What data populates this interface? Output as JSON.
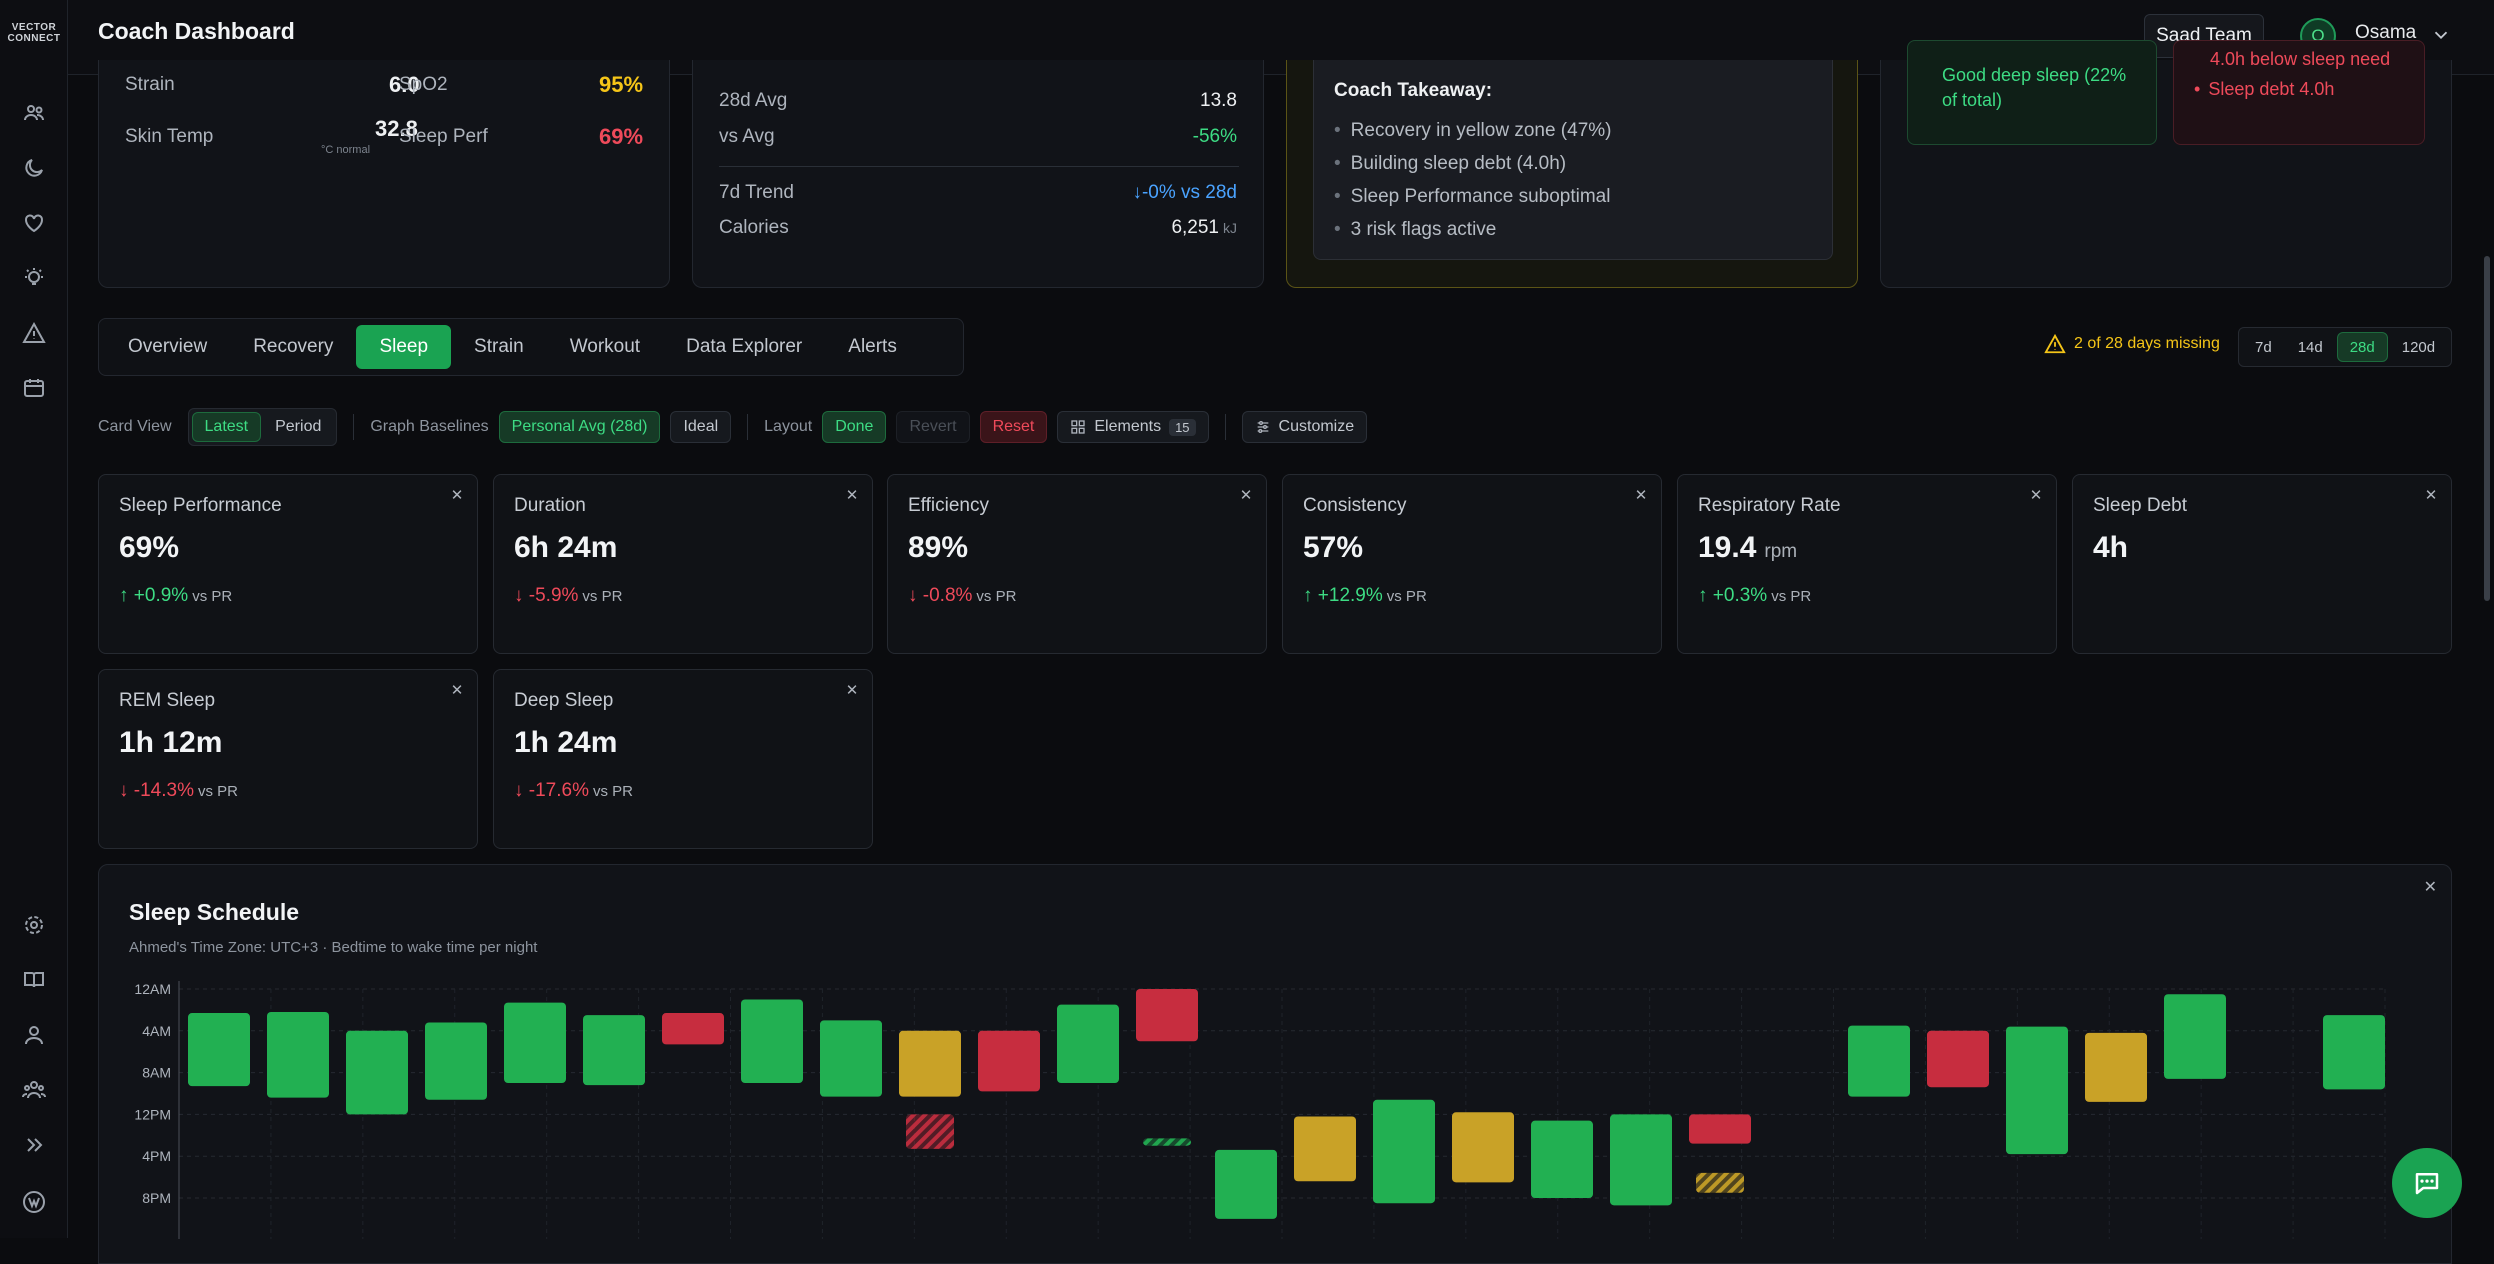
{
  "app": {
    "logo": "VECTOR CONNECT",
    "title": "Coach Dashboard",
    "team_button": "Saad Team",
    "user_initial": "O",
    "user_name": "Osama"
  },
  "sidebar": {
    "top_icons": [
      "team-icon",
      "moon-icon",
      "heart-icon",
      "lightbulb-icon",
      "alert-triangle-icon",
      "calendar-icon"
    ],
    "bottom_icons": [
      "gear-icon",
      "book-icon",
      "user-icon",
      "users-icon",
      "chevrons-right-icon",
      "brand-circle-icon"
    ]
  },
  "summary": {
    "left": {
      "rows": [
        {
          "label": "Strain",
          "value": "6.0",
          "label2": "SpO2",
          "value2": "95%"
        },
        {
          "label": "Skin Temp",
          "value": "32.8",
          "note": "°C normal",
          "label2": "Sleep Perf",
          "value2": "69%"
        }
      ]
    },
    "middle": {
      "avg_label": "28d Avg",
      "avg_value": "13.8",
      "vs_label": "vs Avg",
      "vs_value": "-56%",
      "trend_label": "7d Trend",
      "trend_value": "↓-0% vs 28d",
      "cal_label": "Calories",
      "cal_value": "6,251",
      "cal_unit": "kJ"
    },
    "takeaway": {
      "title": "Coach Takeaway:",
      "items": [
        "Recovery in yellow zone (47%)",
        "Building sleep debt (4.0h)",
        "Sleep Performance suboptimal",
        "3 risk flags active"
      ]
    },
    "flags": {
      "good_text": "Good deep sleep (22% of total)",
      "bad_top": "4.0h below sleep need",
      "bad_item": "Sleep debt 4.0h"
    }
  },
  "tabs": [
    {
      "label": "Overview",
      "active": false
    },
    {
      "label": "Recovery",
      "active": false
    },
    {
      "label": "Sleep",
      "active": true
    },
    {
      "label": "Strain",
      "active": false
    },
    {
      "label": "Workout",
      "active": false
    },
    {
      "label": "Data Explorer",
      "active": false
    },
    {
      "label": "Alerts",
      "active": false
    }
  ],
  "missing_text": "2 of 28 days missing",
  "ranges": [
    {
      "label": "7d"
    },
    {
      "label": "14d"
    },
    {
      "label": "28d",
      "active": true
    },
    {
      "label": "120d"
    }
  ],
  "toolbar": {
    "card_view_label": "Card View",
    "latest": "Latest",
    "period": "Period",
    "baselines_label": "Graph Baselines",
    "personal_avg": "Personal Avg (28d)",
    "ideal": "Ideal",
    "layout_label": "Layout",
    "done": "Done",
    "revert": "Revert",
    "reset": "Reset",
    "elements": "Elements",
    "elements_count": "15",
    "customize": "Customize"
  },
  "metrics": [
    {
      "title": "Sleep Performance",
      "value": "69%",
      "unit": "",
      "delta": "+0.9%",
      "dir": "up",
      "vs": "vs PR"
    },
    {
      "title": "Duration",
      "value": "6h 24m",
      "unit": "",
      "delta": "-5.9%",
      "dir": "down",
      "vs": "vs PR"
    },
    {
      "title": "Efficiency",
      "value": "89%",
      "unit": "",
      "delta": "-0.8%",
      "dir": "down",
      "vs": "vs PR"
    },
    {
      "title": "Consistency",
      "value": "57%",
      "unit": "",
      "delta": "+12.9%",
      "dir": "up",
      "vs": "vs PR"
    },
    {
      "title": "Respiratory Rate",
      "value": "19.4",
      "unit": "rpm",
      "delta": "+0.3%",
      "dir": "up",
      "vs": "vs PR"
    },
    {
      "title": "Sleep Debt",
      "value": "4h",
      "unit": "",
      "delta": "",
      "dir": "none",
      "vs": ""
    },
    {
      "title": "REM Sleep",
      "value": "1h 12m",
      "unit": "",
      "delta": "-14.3%",
      "dir": "down",
      "vs": "vs PR"
    },
    {
      "title": "Deep Sleep",
      "value": "1h 24m",
      "unit": "",
      "delta": "-17.6%",
      "dir": "down",
      "vs": "vs PR"
    }
  ],
  "schedule": {
    "title": "Sleep Schedule",
    "subtitle": "Ahmed's Time Zone: UTC+3 · Bedtime to wake time per night",
    "colors": {
      "green": "#22b052",
      "yellow": "#c9a227",
      "red": "#c72d3f"
    }
  },
  "chart_data": {
    "type": "bar",
    "title": "Sleep Schedule",
    "y_tick_labels": [
      "12AM",
      "4AM",
      "8AM",
      "12PM",
      "4PM",
      "8PM"
    ],
    "note": "Floating bars from bedtime to wake time in hours from 12AM; hatched entries are short naps",
    "nights": [
      {
        "start": 2.3,
        "end": 9.3,
        "color": "green"
      },
      {
        "start": 2.2,
        "end": 10.4,
        "color": "green"
      },
      {
        "start": 4.0,
        "end": 12.0,
        "color": "green"
      },
      {
        "start": 3.2,
        "end": 10.6,
        "color": "green"
      },
      {
        "start": 1.3,
        "end": 9.0,
        "color": "green"
      },
      {
        "start": 2.5,
        "end": 9.2,
        "color": "green"
      },
      {
        "start": 2.3,
        "end": 5.3,
        "color": "red"
      },
      {
        "start": 1.0,
        "end": 9.0,
        "color": "green"
      },
      {
        "start": 3.0,
        "end": 10.3,
        "color": "green"
      },
      {
        "start": 4.0,
        "end": 10.3,
        "color": "yellow"
      },
      {
        "start": 12.0,
        "end": 15.3,
        "color": "red",
        "nap": true
      },
      {
        "start": 4.0,
        "end": 9.8,
        "color": "red"
      },
      {
        "start": 1.5,
        "end": 9.0,
        "color": "green"
      },
      {
        "start": 14.3,
        "end": 15.0,
        "color": "green",
        "nap": true
      },
      {
        "start": 0.0,
        "end": 5.0,
        "color": "red"
      },
      {
        "start": 15.4,
        "end": 22.0,
        "color": "green"
      },
      {
        "start": 12.2,
        "end": 18.4,
        "color": "yellow"
      },
      {
        "start": 10.6,
        "end": 20.5,
        "color": "green"
      },
      {
        "start": 11.8,
        "end": 18.5,
        "color": "yellow"
      },
      {
        "start": 12.6,
        "end": 20.0,
        "color": "green"
      },
      {
        "start": 12.0,
        "end": 20.7,
        "color": "green"
      },
      {
        "start": 12.0,
        "end": 14.8,
        "color": "red"
      },
      {
        "start": 17.6,
        "end": 19.5,
        "color": "yellow",
        "nap": true
      },
      {
        "start": 3.5,
        "end": 10.3,
        "color": "green"
      },
      {
        "start": 4.0,
        "end": 9.4,
        "color": "red"
      },
      {
        "start": 3.6,
        "end": 15.8,
        "color": "green"
      },
      {
        "start": 4.2,
        "end": 10.8,
        "color": "yellow"
      },
      {
        "start": 0.5,
        "end": 8.6,
        "color": "green"
      },
      {
        "start": 2.5,
        "end": 9.6,
        "color": "green"
      }
    ]
  }
}
